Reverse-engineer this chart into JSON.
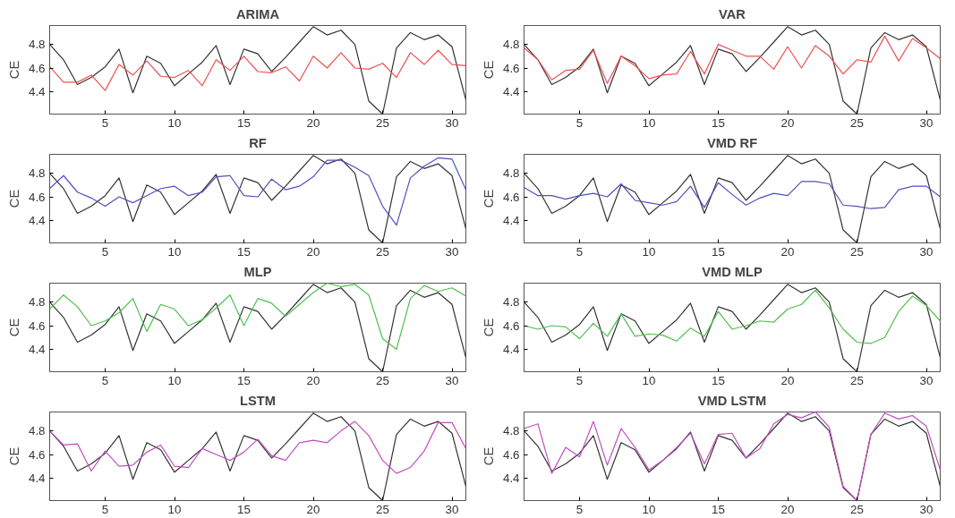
{
  "chart_data": [
    {
      "type": "line",
      "title": "ARIMA",
      "ylabel": "CE",
      "x": [
        1,
        2,
        3,
        4,
        5,
        6,
        7,
        8,
        9,
        10,
        11,
        12,
        13,
        14,
        15,
        16,
        17,
        18,
        19,
        20,
        21,
        22,
        23,
        24,
        25,
        26,
        27,
        28,
        29,
        30,
        31
      ],
      "xlim": [
        1,
        31
      ],
      "ylim": [
        4.21,
        4.96
      ],
      "xticks": [
        5,
        10,
        15,
        20,
        25,
        30
      ],
      "yticks": [
        4.4,
        4.6,
        4.8
      ],
      "grid": false,
      "series": [
        {
          "color": "#333333",
          "values": [
            4.8,
            4.67,
            4.46,
            4.52,
            4.61,
            4.76,
            4.39,
            4.7,
            4.64,
            4.45,
            4.55,
            4.65,
            4.79,
            4.46,
            4.76,
            4.72,
            4.57,
            4.69,
            4.82,
            4.95,
            4.88,
            4.92,
            4.8,
            4.32,
            4.21,
            4.77,
            4.9,
            4.84,
            4.88,
            4.78,
            4.33
          ]
        },
        {
          "color": "#f05050",
          "values": [
            4.61,
            4.48,
            4.48,
            4.54,
            4.41,
            4.63,
            4.54,
            4.66,
            4.53,
            4.52,
            4.58,
            4.45,
            4.67,
            4.58,
            4.7,
            4.57,
            4.56,
            4.61,
            4.49,
            4.7,
            4.6,
            4.73,
            4.6,
            4.59,
            4.64,
            4.52,
            4.73,
            4.63,
            4.75,
            4.63,
            4.62
          ]
        }
      ]
    },
    {
      "type": "line",
      "title": "VAR",
      "ylabel": "CE",
      "x": [
        1,
        2,
        3,
        4,
        5,
        6,
        7,
        8,
        9,
        10,
        11,
        12,
        13,
        14,
        15,
        16,
        17,
        18,
        19,
        20,
        21,
        22,
        23,
        24,
        25,
        26,
        27,
        28,
        29,
        30,
        31
      ],
      "xlim": [
        1,
        31
      ],
      "ylim": [
        4.21,
        4.96
      ],
      "xticks": [
        5,
        10,
        15,
        20,
        25,
        30
      ],
      "yticks": [
        4.4,
        4.6,
        4.8
      ],
      "grid": false,
      "series": [
        {
          "color": "#333333",
          "values": [
            4.8,
            4.67,
            4.46,
            4.52,
            4.61,
            4.76,
            4.39,
            4.7,
            4.64,
            4.45,
            4.55,
            4.65,
            4.79,
            4.46,
            4.76,
            4.72,
            4.57,
            4.69,
            4.82,
            4.95,
            4.88,
            4.92,
            4.8,
            4.32,
            4.21,
            4.77,
            4.9,
            4.84,
            4.88,
            4.78,
            4.33
          ]
        },
        {
          "color": "#f05050",
          "values": [
            4.77,
            4.67,
            4.5,
            4.58,
            4.59,
            4.75,
            4.47,
            4.7,
            4.62,
            4.51,
            4.54,
            4.55,
            4.74,
            4.55,
            4.8,
            4.75,
            4.7,
            4.7,
            4.59,
            4.78,
            4.6,
            4.79,
            4.7,
            4.55,
            4.67,
            4.65,
            4.87,
            4.66,
            4.85,
            4.77,
            4.68
          ]
        }
      ]
    },
    {
      "type": "line",
      "title": "RF",
      "ylabel": "CE",
      "x": [
        1,
        2,
        3,
        4,
        5,
        6,
        7,
        8,
        9,
        10,
        11,
        12,
        13,
        14,
        15,
        16,
        17,
        18,
        19,
        20,
        21,
        22,
        23,
        24,
        25,
        26,
        27,
        28,
        29,
        30,
        31
      ],
      "xlim": [
        1,
        31
      ],
      "ylim": [
        4.21,
        4.96
      ],
      "xticks": [
        5,
        10,
        15,
        20,
        25,
        30
      ],
      "yticks": [
        4.4,
        4.6,
        4.8
      ],
      "grid": false,
      "series": [
        {
          "color": "#333333",
          "values": [
            4.8,
            4.67,
            4.46,
            4.52,
            4.61,
            4.76,
            4.39,
            4.7,
            4.64,
            4.45,
            4.55,
            4.65,
            4.79,
            4.46,
            4.76,
            4.72,
            4.57,
            4.69,
            4.82,
            4.95,
            4.88,
            4.92,
            4.8,
            4.32,
            4.21,
            4.77,
            4.9,
            4.84,
            4.88,
            4.78,
            4.33
          ]
        },
        {
          "color": "#5050c0",
          "values": [
            4.67,
            4.78,
            4.64,
            4.59,
            4.52,
            4.6,
            4.55,
            4.61,
            4.67,
            4.69,
            4.61,
            4.64,
            4.77,
            4.78,
            4.61,
            4.6,
            4.75,
            4.66,
            4.69,
            4.77,
            4.91,
            4.91,
            4.85,
            4.78,
            4.52,
            4.36,
            4.76,
            4.86,
            4.93,
            4.92,
            4.66
          ]
        }
      ]
    },
    {
      "type": "line",
      "title": "VMD RF",
      "ylabel": "CE",
      "x": [
        1,
        2,
        3,
        4,
        5,
        6,
        7,
        8,
        9,
        10,
        11,
        12,
        13,
        14,
        15,
        16,
        17,
        18,
        19,
        20,
        21,
        22,
        23,
        24,
        25,
        26,
        27,
        28,
        29,
        30,
        31
      ],
      "xlim": [
        1,
        31
      ],
      "ylim": [
        4.21,
        4.96
      ],
      "xticks": [
        5,
        10,
        15,
        20,
        25,
        30
      ],
      "yticks": [
        4.4,
        4.6,
        4.8
      ],
      "grid": false,
      "series": [
        {
          "color": "#333333",
          "values": [
            4.8,
            4.67,
            4.46,
            4.52,
            4.61,
            4.76,
            4.39,
            4.7,
            4.64,
            4.45,
            4.55,
            4.65,
            4.79,
            4.46,
            4.76,
            4.72,
            4.57,
            4.69,
            4.82,
            4.95,
            4.88,
            4.92,
            4.8,
            4.32,
            4.21,
            4.77,
            4.9,
            4.84,
            4.88,
            4.78,
            4.33
          ]
        },
        {
          "color": "#5050c0",
          "values": [
            4.68,
            4.61,
            4.61,
            4.58,
            4.61,
            4.63,
            4.6,
            4.71,
            4.57,
            4.55,
            4.53,
            4.56,
            4.69,
            4.51,
            4.72,
            4.62,
            4.53,
            4.59,
            4.63,
            4.61,
            4.73,
            4.73,
            4.71,
            4.53,
            4.52,
            4.5,
            4.51,
            4.66,
            4.69,
            4.69,
            4.6
          ]
        }
      ]
    },
    {
      "type": "line",
      "title": "MLP",
      "ylabel": "CE",
      "x": [
        1,
        2,
        3,
        4,
        5,
        6,
        7,
        8,
        9,
        10,
        11,
        12,
        13,
        14,
        15,
        16,
        17,
        18,
        19,
        20,
        21,
        22,
        23,
        24,
        25,
        26,
        27,
        28,
        29,
        30,
        31
      ],
      "xlim": [
        1,
        31
      ],
      "ylim": [
        4.21,
        4.96
      ],
      "xticks": [
        5,
        10,
        15,
        20,
        25,
        30
      ],
      "yticks": [
        4.4,
        4.6,
        4.8
      ],
      "grid": false,
      "series": [
        {
          "color": "#333333",
          "values": [
            4.8,
            4.67,
            4.46,
            4.52,
            4.61,
            4.76,
            4.39,
            4.7,
            4.64,
            4.45,
            4.55,
            4.65,
            4.79,
            4.46,
            4.76,
            4.72,
            4.57,
            4.69,
            4.82,
            4.95,
            4.88,
            4.92,
            4.8,
            4.32,
            4.21,
            4.77,
            4.9,
            4.84,
            4.88,
            4.78,
            4.33
          ]
        },
        {
          "color": "#50c050",
          "values": [
            4.74,
            4.86,
            4.76,
            4.6,
            4.64,
            4.71,
            4.83,
            4.55,
            4.78,
            4.74,
            4.6,
            4.65,
            4.75,
            4.86,
            4.6,
            4.83,
            4.79,
            4.68,
            4.78,
            4.88,
            4.96,
            4.93,
            4.95,
            4.86,
            4.49,
            4.4,
            4.83,
            4.94,
            4.89,
            4.92,
            4.85
          ]
        }
      ]
    },
    {
      "type": "line",
      "title": "VMD MLP",
      "ylabel": "CE",
      "x": [
        1,
        2,
        3,
        4,
        5,
        6,
        7,
        8,
        9,
        10,
        11,
        12,
        13,
        14,
        15,
        16,
        17,
        18,
        19,
        20,
        21,
        22,
        23,
        24,
        25,
        26,
        27,
        28,
        29,
        30,
        31
      ],
      "xlim": [
        1,
        31
      ],
      "ylim": [
        4.21,
        4.96
      ],
      "xticks": [
        5,
        10,
        15,
        20,
        25,
        30
      ],
      "yticks": [
        4.4,
        4.6,
        4.8
      ],
      "grid": false,
      "series": [
        {
          "color": "#333333",
          "values": [
            4.8,
            4.67,
            4.46,
            4.52,
            4.61,
            4.76,
            4.39,
            4.7,
            4.64,
            4.45,
            4.55,
            4.65,
            4.79,
            4.46,
            4.76,
            4.72,
            4.57,
            4.69,
            4.82,
            4.95,
            4.88,
            4.92,
            4.8,
            4.32,
            4.21,
            4.77,
            4.9,
            4.84,
            4.88,
            4.78,
            4.33
          ]
        },
        {
          "color": "#50c050",
          "values": [
            4.6,
            4.57,
            4.6,
            4.59,
            4.49,
            4.62,
            4.51,
            4.7,
            4.51,
            4.53,
            4.52,
            4.47,
            4.58,
            4.51,
            4.72,
            4.57,
            4.6,
            4.64,
            4.63,
            4.74,
            4.78,
            4.9,
            4.75,
            4.57,
            4.46,
            4.45,
            4.5,
            4.72,
            4.85,
            4.77,
            4.64
          ]
        }
      ]
    },
    {
      "type": "line",
      "title": "LSTM",
      "ylabel": "CE",
      "x": [
        1,
        2,
        3,
        4,
        5,
        6,
        7,
        8,
        9,
        10,
        11,
        12,
        13,
        14,
        15,
        16,
        17,
        18,
        19,
        20,
        21,
        22,
        23,
        24,
        25,
        26,
        27,
        28,
        29,
        30,
        31
      ],
      "xlim": [
        1,
        31
      ],
      "ylim": [
        4.21,
        4.96
      ],
      "xticks": [
        5,
        10,
        15,
        20,
        25,
        30
      ],
      "yticks": [
        4.4,
        4.6,
        4.8
      ],
      "grid": false,
      "series": [
        {
          "color": "#333333",
          "values": [
            4.8,
            4.67,
            4.46,
            4.52,
            4.61,
            4.76,
            4.39,
            4.7,
            4.64,
            4.45,
            4.55,
            4.65,
            4.79,
            4.46,
            4.76,
            4.72,
            4.57,
            4.69,
            4.82,
            4.95,
            4.88,
            4.92,
            4.8,
            4.32,
            4.21,
            4.77,
            4.9,
            4.84,
            4.88,
            4.78,
            4.33
          ]
        },
        {
          "color": "#c050c0",
          "values": [
            4.8,
            4.68,
            4.69,
            4.46,
            4.63,
            4.5,
            4.51,
            4.62,
            4.68,
            4.5,
            4.49,
            4.65,
            4.6,
            4.55,
            4.62,
            4.73,
            4.59,
            4.55,
            4.7,
            4.72,
            4.7,
            4.8,
            4.88,
            4.76,
            4.55,
            4.44,
            4.49,
            4.63,
            4.87,
            4.87,
            4.65
          ]
        }
      ]
    },
    {
      "type": "line",
      "title": "VMD LSTM",
      "ylabel": "CE",
      "x": [
        1,
        2,
        3,
        4,
        5,
        6,
        7,
        8,
        9,
        10,
        11,
        12,
        13,
        14,
        15,
        16,
        17,
        18,
        19,
        20,
        21,
        22,
        23,
        24,
        25,
        26,
        27,
        28,
        29,
        30,
        31
      ],
      "xlim": [
        1,
        31
      ],
      "ylim": [
        4.21,
        4.96
      ],
      "xticks": [
        5,
        10,
        15,
        20,
        25,
        30
      ],
      "yticks": [
        4.4,
        4.6,
        4.8
      ],
      "grid": false,
      "series": [
        {
          "color": "#333333",
          "values": [
            4.8,
            4.67,
            4.46,
            4.52,
            4.61,
            4.76,
            4.39,
            4.7,
            4.64,
            4.45,
            4.55,
            4.65,
            4.79,
            4.46,
            4.76,
            4.72,
            4.57,
            4.69,
            4.82,
            4.95,
            4.88,
            4.92,
            4.8,
            4.32,
            4.21,
            4.77,
            4.9,
            4.84,
            4.88,
            4.78,
            4.33
          ]
        },
        {
          "color": "#c050c0",
          "values": [
            4.82,
            4.86,
            4.44,
            4.66,
            4.58,
            4.88,
            4.51,
            4.82,
            4.66,
            4.47,
            4.55,
            4.66,
            4.78,
            4.52,
            4.77,
            4.78,
            4.57,
            4.65,
            4.86,
            4.94,
            4.91,
            4.96,
            4.83,
            4.33,
            4.21,
            4.77,
            4.95,
            4.9,
            4.93,
            4.84,
            4.47
          ]
        }
      ]
    }
  ]
}
